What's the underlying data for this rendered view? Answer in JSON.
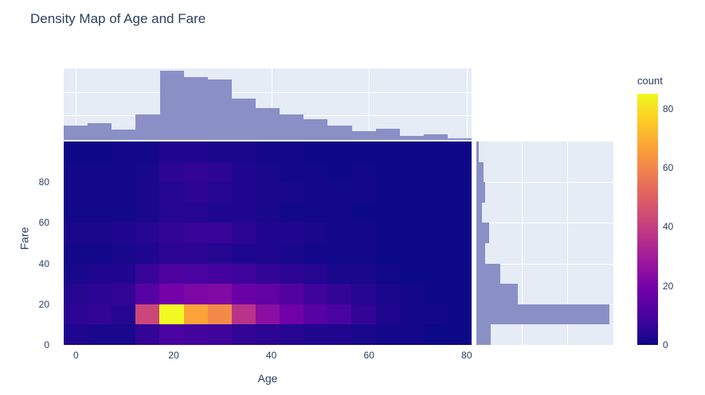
{
  "title": "Density Map of Age and Fare",
  "colors": {
    "text": "#2a3f5f",
    "panel_bg": "#e5ecf6",
    "hist_bar": "#8a90c6",
    "grid_line": "#ffffff",
    "heatmap_background": "#0d0887"
  },
  "chart_data": {
    "type": "heatmap",
    "title": "Density Map of Age and Fare",
    "xlabel": "Age",
    "ylabel": "Fare",
    "colorbar_label": "count",
    "legend_position": "none",
    "grid": true,
    "x_ticks": [
      0,
      20,
      40,
      60,
      80
    ],
    "y_ticks": [
      0,
      20,
      40,
      60,
      80
    ],
    "x_range": [
      -2.5,
      81
    ],
    "y_range": [
      0,
      100
    ],
    "colorbar_ticks": [
      0,
      20,
      40,
      60,
      80
    ],
    "colorbar_range": [
      0,
      85
    ],
    "colorscale": "plasma",
    "plasma_stops": [
      [
        0.0,
        "#0d0887"
      ],
      [
        0.111,
        "#46039f"
      ],
      [
        0.222,
        "#7201a8"
      ],
      [
        0.333,
        "#9c179e"
      ],
      [
        0.444,
        "#bd3786"
      ],
      [
        0.556,
        "#d8576b"
      ],
      [
        0.667,
        "#ed7953"
      ],
      [
        0.778,
        "#fb9f3a"
      ],
      [
        0.889,
        "#fdca26"
      ],
      [
        1.0,
        "#f0f921"
      ]
    ],
    "heatmap": {
      "x_bin_start": 0,
      "x_bin_size": 5,
      "y_bin_start": 0,
      "y_bin_size": 10,
      "zmax": 84,
      "z_row_order": "bottom_to_top",
      "z": [
        [
          3,
          2,
          2,
          6,
          10,
          9,
          8,
          6,
          5,
          4,
          3,
          3,
          2,
          1,
          1,
          0,
          0
        ],
        [
          5,
          6,
          4,
          42,
          84,
          66,
          60,
          36,
          24,
          18,
          13,
          10,
          6,
          3,
          1,
          1,
          0
        ],
        [
          4,
          5,
          6,
          13,
          19,
          21,
          22,
          17,
          15,
          12,
          8,
          6,
          4,
          2,
          1,
          0,
          0
        ],
        [
          2,
          3,
          3,
          7,
          11,
          10,
          9,
          8,
          6,
          5,
          4,
          2,
          2,
          1,
          0,
          0,
          0
        ],
        [
          1,
          1,
          2,
          3,
          5,
          5,
          4,
          3,
          3,
          2,
          1,
          1,
          1,
          0,
          0,
          0,
          0
        ],
        [
          2,
          2,
          3,
          4,
          6,
          7,
          7,
          5,
          3,
          3,
          2,
          1,
          1,
          0,
          0,
          0,
          0
        ],
        [
          1,
          1,
          1,
          2,
          4,
          4,
          3,
          3,
          2,
          1,
          1,
          1,
          0,
          0,
          0,
          0,
          0
        ],
        [
          1,
          1,
          1,
          2,
          4,
          5,
          4,
          3,
          2,
          2,
          1,
          1,
          1,
          0,
          0,
          0,
          0
        ],
        [
          1,
          1,
          1,
          2,
          5,
          6,
          5,
          3,
          2,
          1,
          1,
          0,
          1,
          0,
          0,
          0,
          0
        ],
        [
          0,
          0,
          1,
          1,
          3,
          3,
          2,
          2,
          1,
          1,
          0,
          0,
          0,
          0,
          0,
          0,
          0
        ]
      ]
    },
    "top_histogram": {
      "axis": "Age",
      "bin_size": 5,
      "bin_start": 0,
      "values": [
        23,
        28,
        17,
        42,
        114,
        103,
        100,
        68,
        52,
        42,
        34,
        23,
        15,
        18,
        6,
        9,
        3
      ],
      "scale_max": 118
    },
    "right_histogram": {
      "axis": "Fare",
      "bin_size": 10,
      "bin_start": 0,
      "values": [
        35,
        321,
        100,
        58,
        22,
        30,
        14,
        22,
        18,
        6
      ],
      "scale_max": 330
    }
  }
}
